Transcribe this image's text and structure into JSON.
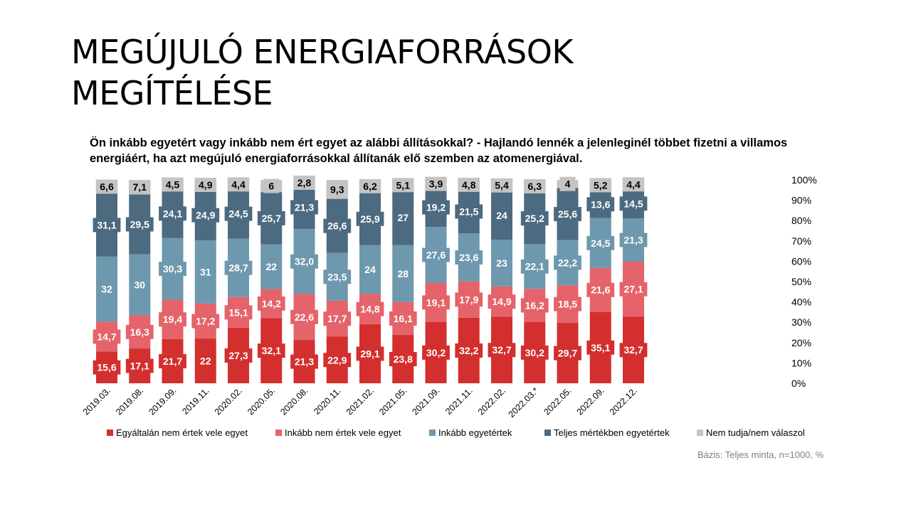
{
  "title_line1": "MEGÚJULÓ ENERGIAFORRÁSOK",
  "title_line2": "MEGÍTÉLÉSE",
  "subtitle": "Ön inkább egyetért vagy inkább nem ért egyet az alábbi állításokkal? - Hajlandó lennék a jelenleginél többet fizetni a villamos energiáért, ha azt megújuló energiaforrásokkal állítanák elő szemben az atomenergiával.",
  "base_note": "Bázis: Teljes minta, n=1000, %",
  "chart_data": {
    "type": "bar",
    "stacked": true,
    "categories": [
      "2019.03.",
      "2019.08.",
      "2019.09.",
      "2019.11.",
      "2020.02.",
      "2020.05.",
      "2020.08.",
      "2020.11.",
      "2021.02.",
      "2021.05.",
      "2021.09.",
      "2021.11.",
      "2022.02.",
      "2022.03.*",
      "2022.05.",
      "2022.09.",
      "2022.12."
    ],
    "ylim": [
      0,
      100
    ],
    "yticks": [
      "0%",
      "10%",
      "20%",
      "30%",
      "40%",
      "50%",
      "60%",
      "70%",
      "80%",
      "90%",
      "100%"
    ],
    "legend_position": "bottom",
    "series": [
      {
        "name": "Egyáltalán nem értek vele egyet",
        "color": "#d32f2f",
        "values": [
          15.6,
          17.1,
          21.7,
          22,
          27.3,
          32.1,
          21.3,
          22.9,
          29.1,
          23.8,
          30.2,
          32.2,
          32.7,
          30.2,
          29.7,
          35.1,
          32.7
        ],
        "labels": [
          "15,6",
          "17,1",
          "21,7",
          "22",
          "27,3",
          "32,1",
          "21,3",
          "22,9",
          "29,1",
          "23,8",
          "30,2",
          "32,2",
          "32,7",
          "30,2",
          "29,7",
          "35,1",
          "32,7"
        ]
      },
      {
        "name": "Inkább nem értek vele egyet",
        "color": "#e5636a",
        "values": [
          14.7,
          16.3,
          19.4,
          17.2,
          15.1,
          14.2,
          22.6,
          17.7,
          14.8,
          16.1,
          19.1,
          17.9,
          14.9,
          16.2,
          18.5,
          21.6,
          27.1
        ],
        "labels": [
          "14,7",
          "16,3",
          "19,4",
          "17,2",
          "15,1",
          "14,2",
          "22,6",
          "17,7",
          "14,8",
          "16,1",
          "19,1",
          "17,9",
          "14,9",
          "16,2",
          "18,5",
          "21,6",
          "27,1"
        ]
      },
      {
        "name": "Inkább egyetértek",
        "color": "#6e98ad",
        "values": [
          32,
          30,
          30.3,
          31,
          28.7,
          22,
          32.0,
          23.5,
          24,
          28,
          27.6,
          23.6,
          23,
          22.1,
          22.2,
          24.5,
          21.3
        ],
        "labels": [
          "32",
          "30",
          "30,3",
          "31",
          "28,7",
          "22",
          "32,0",
          "23,5",
          "24",
          "28",
          "27,6",
          "23,6",
          "23",
          "22,1",
          "22,2",
          "24,5",
          "21,3"
        ]
      },
      {
        "name": "Teljes mértékben egyetértek",
        "color": "#4c6a80",
        "values": [
          31.1,
          29.5,
          24.1,
          24.9,
          24.5,
          25.7,
          21.3,
          26.6,
          25.9,
          27,
          19.2,
          21.5,
          24,
          25.2,
          25.6,
          13.6,
          14.5
        ],
        "labels": [
          "31,1",
          "29,5",
          "24,1",
          "24,9",
          "24,5",
          "25,7",
          "21,3",
          "26,6",
          "25,9",
          "27",
          "19,2",
          "21,5",
          "24",
          "25,2",
          "25,6",
          "13,6",
          "14,5"
        ]
      },
      {
        "name": "Nem tudja/nem válaszol",
        "color": "#c4c4c4",
        "values": [
          6.6,
          7.1,
          4.5,
          4.9,
          4.4,
          6,
          2.8,
          9.3,
          6.2,
          5.1,
          3.9,
          4.8,
          5.4,
          6.3,
          4,
          5.2,
          4.4
        ],
        "labels": [
          "6,6",
          "7,1",
          "4,5",
          "4,9",
          "4,4",
          "6",
          "2,8",
          "9,3",
          "6,2",
          "5,1",
          "3,9",
          "4,8",
          "5,4",
          "6,3",
          "4",
          "5,2",
          "4,4"
        ]
      }
    ]
  }
}
